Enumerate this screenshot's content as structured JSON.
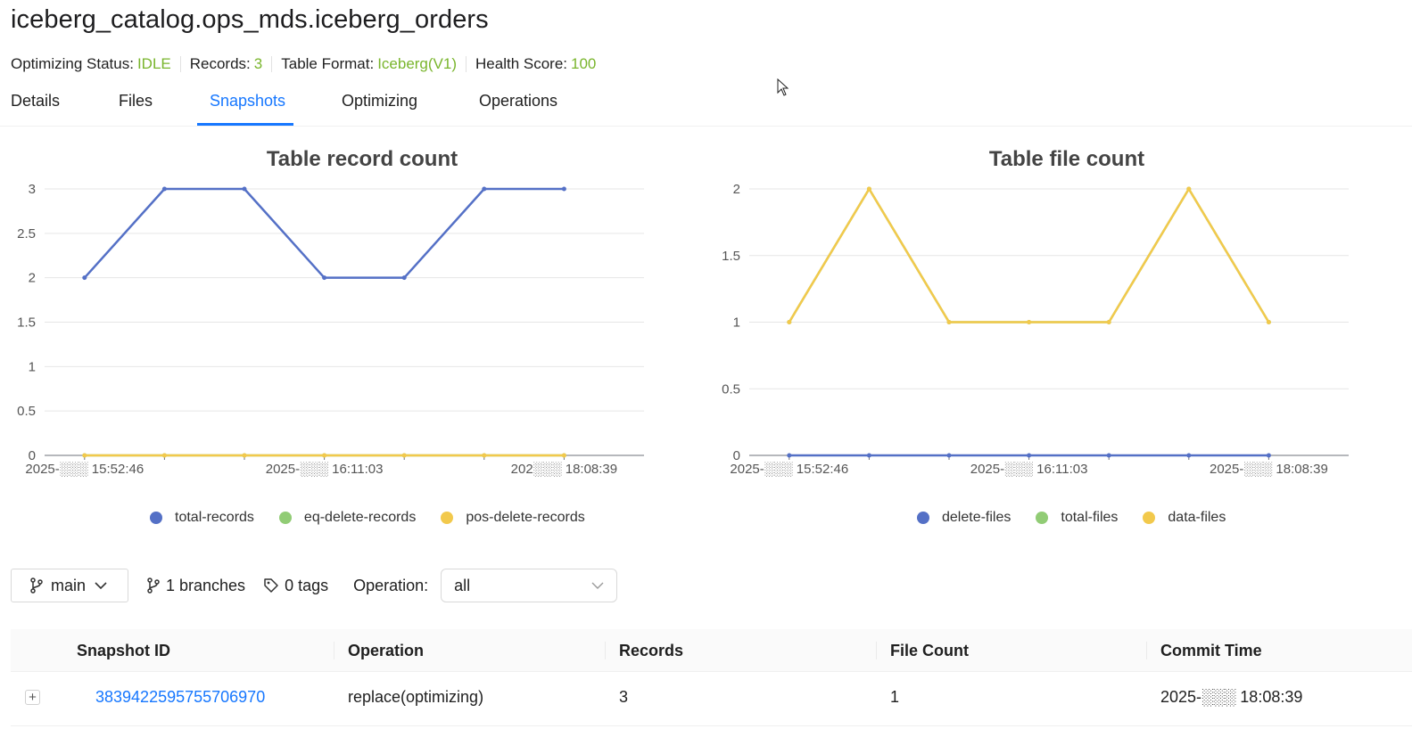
{
  "header": {
    "title": "iceberg_catalog.ops_mds.iceberg_orders",
    "meta": [
      {
        "label": "Optimizing Status:",
        "value": "IDLE"
      },
      {
        "label": "Records:",
        "value": "3"
      },
      {
        "label": "Table Format:",
        "value": "Iceberg(V1)"
      },
      {
        "label": "Health Score:",
        "value": "100"
      }
    ],
    "accent_color": "#79b52c"
  },
  "tabs": [
    {
      "label": "Details"
    },
    {
      "label": "Files"
    },
    {
      "label": "Snapshots",
      "active": true
    },
    {
      "label": "Optimizing"
    },
    {
      "label": "Operations"
    }
  ],
  "chart_data": [
    {
      "type": "line",
      "title": "Table record count",
      "x": [
        "2025-xx-xx 15:52:46",
        "",
        "",
        "2025-xx-xx 16:11:03",
        "",
        "",
        "2025-xx-xx 18:08:39"
      ],
      "x_tick_labels": [
        "2025-░░░ 15:52:46",
        "2025-░░░ 16:11:03",
        "202░░░ 18:08:39"
      ],
      "y_ticks": [
        "0",
        "0.5",
        "1",
        "1.5",
        "2",
        "2.5",
        "3"
      ],
      "ylim": [
        0,
        3
      ],
      "series": [
        {
          "name": "total-records",
          "color": "#5470c6",
          "values": [
            2,
            3,
            3,
            2,
            2,
            3,
            3
          ]
        },
        {
          "name": "eq-delete-records",
          "color": "#91cc75",
          "values": [
            0,
            0,
            0,
            0,
            0,
            0,
            0
          ]
        },
        {
          "name": "pos-delete-records",
          "color": "#f2c94c",
          "values": [
            0,
            0,
            0,
            0,
            0,
            0,
            0
          ]
        }
      ],
      "legend": "bottom",
      "grid": true
    },
    {
      "type": "line",
      "title": "Table file count",
      "x": [
        "2025-xx-xx 15:52:46",
        "",
        "",
        "2025-xx-xx 16:11:03",
        "",
        "",
        "2025-xx-xx 18:08:39"
      ],
      "x_tick_labels": [
        "2025-░░░ 15:52:46",
        "2025-░░░ 16:11:03",
        "2025-░░░ 18:08:39"
      ],
      "y_ticks": [
        "0",
        "0.5",
        "1",
        "1.5",
        "2"
      ],
      "ylim": [
        0,
        2
      ],
      "series": [
        {
          "name": "delete-files",
          "color": "#5470c6",
          "values": [
            0,
            0,
            0,
            0,
            0,
            0,
            0
          ]
        },
        {
          "name": "total-files",
          "color": "#91cc75",
          "values": [
            1,
            2,
            1,
            1,
            1,
            2,
            1
          ]
        },
        {
          "name": "data-files",
          "color": "#f2c94c",
          "values": [
            1,
            2,
            1,
            1,
            1,
            2,
            1
          ]
        }
      ],
      "legend": "bottom",
      "grid": true
    }
  ],
  "toolbar": {
    "branch_icon": "branch-icon",
    "branch": "main",
    "branches_label": "1 branches",
    "tags_label": "0 tags",
    "operation_label": "Operation:",
    "operation_value": "all"
  },
  "table": {
    "columns": [
      "Snapshot ID",
      "Operation",
      "Records",
      "File Count",
      "Commit Time"
    ],
    "rows": [
      {
        "snapshot_id": "3839422595755706970",
        "operation": "replace(optimizing)",
        "records": "3",
        "file_count": "1",
        "commit_time": "2025-░░░ 18:08:39"
      }
    ]
  }
}
